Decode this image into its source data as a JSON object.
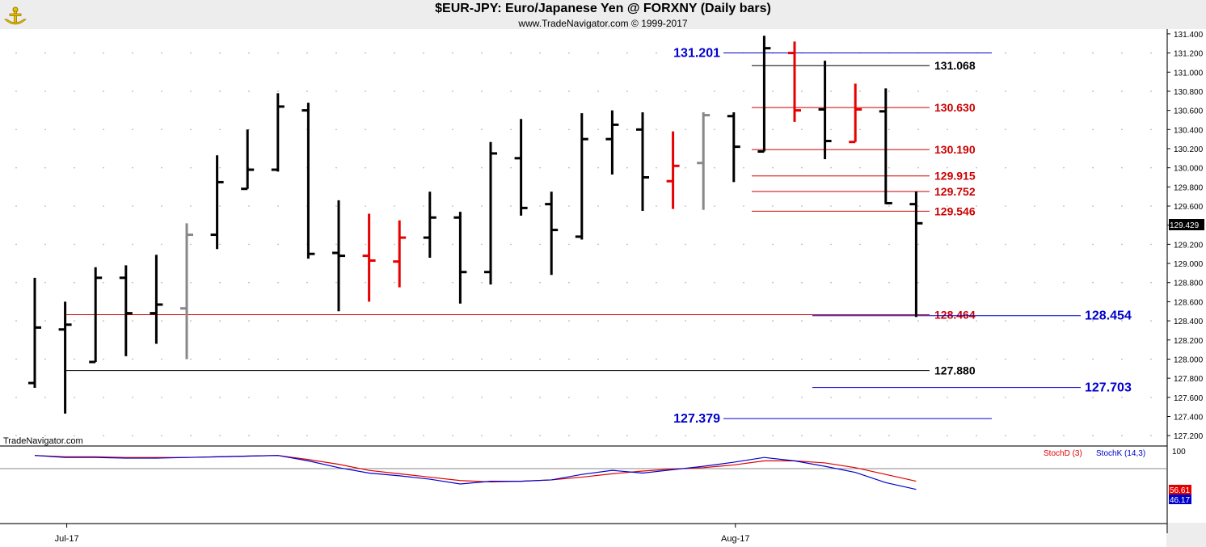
{
  "header": {
    "title": "$EUR-JPY:  Euro/Japanese Yen @ FORXNY  (Daily bars)",
    "subtitle": "www.TradeNavigator.com © 1999-2017",
    "watermark": "TradeNavigator.com"
  },
  "colors": {
    "bar_black": "#000000",
    "bar_red": "#e60000",
    "bar_gray": "#888888",
    "level_red": "#cc0000",
    "level_blue": "#0000cc",
    "level_black": "#000000",
    "stoch_d": "#e00000",
    "stoch_k": "#0000cc",
    "last_price_bg": "#000000",
    "logo": "#e8c000"
  },
  "chart_data": [
    {
      "type": "ohlc",
      "ylim": [
        127.1,
        131.45
      ],
      "y_ticks": [
        "127.200",
        "127.400",
        "127.600",
        "127.800",
        "128.000",
        "128.200",
        "128.400",
        "128.600",
        "128.800",
        "129.000",
        "129.200",
        "129.400",
        "129.600",
        "129.800",
        "130.000",
        "130.200",
        "130.400",
        "130.600",
        "130.800",
        "131.000",
        "131.200",
        "131.400"
      ],
      "x_labels": [
        {
          "label": "Jul-17",
          "index": 1
        },
        {
          "label": "Aug-17",
          "index": 23
        }
      ],
      "last_price": "129.429",
      "bars": [
        {
          "o": 127.75,
          "h": 128.85,
          "l": 127.7,
          "c": 128.33,
          "color": "black"
        },
        {
          "o": 128.31,
          "h": 128.6,
          "l": 127.43,
          "c": 128.36,
          "color": "black"
        },
        {
          "o": 127.97,
          "h": 128.96,
          "l": 127.97,
          "c": 128.85,
          "color": "black"
        },
        {
          "o": 128.85,
          "h": 128.98,
          "l": 128.03,
          "c": 128.48,
          "color": "black"
        },
        {
          "o": 128.48,
          "h": 129.09,
          "l": 128.16,
          "c": 128.57,
          "color": "black"
        },
        {
          "o": 128.53,
          "h": 129.42,
          "l": 128.0,
          "c": 129.3,
          "color": "gray"
        },
        {
          "o": 129.3,
          "h": 130.13,
          "l": 129.15,
          "c": 129.85,
          "color": "black"
        },
        {
          "o": 129.78,
          "h": 130.4,
          "l": 129.78,
          "c": 129.98,
          "color": "black"
        },
        {
          "o": 129.98,
          "h": 130.78,
          "l": 129.96,
          "c": 130.64,
          "color": "black"
        },
        {
          "o": 130.6,
          "h": 130.68,
          "l": 129.05,
          "c": 129.1,
          "color": "black"
        },
        {
          "o": 129.11,
          "h": 129.66,
          "l": 128.5,
          "c": 129.08,
          "color": "black"
        },
        {
          "o": 129.08,
          "h": 129.52,
          "l": 128.6,
          "c": 129.03,
          "color": "red"
        },
        {
          "o": 129.02,
          "h": 129.45,
          "l": 128.75,
          "c": 129.27,
          "color": "red"
        },
        {
          "o": 129.27,
          "h": 129.75,
          "l": 129.06,
          "c": 129.48,
          "color": "black"
        },
        {
          "o": 129.48,
          "h": 129.54,
          "l": 128.58,
          "c": 128.91,
          "color": "black"
        },
        {
          "o": 128.91,
          "h": 130.27,
          "l": 128.78,
          "c": 130.15,
          "color": "black"
        },
        {
          "o": 130.1,
          "h": 130.51,
          "l": 129.5,
          "c": 129.58,
          "color": "black"
        },
        {
          "o": 129.62,
          "h": 129.75,
          "l": 128.88,
          "c": 129.35,
          "color": "black"
        },
        {
          "o": 129.28,
          "h": 130.57,
          "l": 129.25,
          "c": 130.3,
          "color": "black"
        },
        {
          "o": 130.3,
          "h": 130.6,
          "l": 129.93,
          "c": 130.45,
          "color": "black"
        },
        {
          "o": 130.4,
          "h": 130.58,
          "l": 129.55,
          "c": 129.9,
          "color": "black"
        },
        {
          "o": 129.86,
          "h": 130.38,
          "l": 129.57,
          "c": 130.02,
          "color": "red"
        },
        {
          "o": 130.05,
          "h": 130.58,
          "l": 129.56,
          "c": 130.55,
          "color": "gray"
        },
        {
          "o": 130.54,
          "h": 130.58,
          "l": 129.85,
          "c": 130.22,
          "color": "black"
        },
        {
          "o": 130.17,
          "h": 131.38,
          "l": 130.17,
          "c": 131.25,
          "color": "black"
        },
        {
          "o": 131.2,
          "h": 131.32,
          "l": 130.48,
          "c": 130.6,
          "color": "red"
        },
        {
          "o": 130.61,
          "h": 131.12,
          "l": 130.09,
          "c": 130.28,
          "color": "black"
        },
        {
          "o": 130.27,
          "h": 130.88,
          "l": 130.27,
          "c": 130.61,
          "color": "red"
        },
        {
          "o": 130.59,
          "h": 130.83,
          "l": 129.62,
          "c": 129.63,
          "color": "black"
        },
        {
          "o": 129.62,
          "h": 129.75,
          "l": 128.44,
          "c": 129.42,
          "color": "black"
        }
      ],
      "levels": [
        {
          "value": "131.201",
          "color": "blue",
          "side": "left"
        },
        {
          "value": "131.068",
          "color": "black",
          "side": "mid"
        },
        {
          "value": "130.630",
          "color": "red",
          "side": "mid"
        },
        {
          "value": "130.190",
          "color": "red",
          "side": "mid"
        },
        {
          "value": "129.915",
          "color": "red",
          "side": "mid"
        },
        {
          "value": "129.752",
          "color": "red",
          "side": "mid"
        },
        {
          "value": "129.546",
          "color": "red",
          "side": "mid"
        },
        {
          "value": "128.464",
          "color": "red",
          "side": "mid"
        },
        {
          "value": "128.454",
          "color": "blue",
          "side": "right"
        },
        {
          "value": "127.880",
          "color": "black",
          "side": "mid"
        },
        {
          "value": "127.703",
          "color": "blue",
          "side": "right"
        },
        {
          "value": "127.379",
          "color": "blue",
          "side": "left"
        }
      ]
    },
    {
      "type": "line",
      "ylim": [
        0,
        100
      ],
      "y_tick": "100",
      "series": [
        {
          "name": "StochD (3)",
          "last": "56.61",
          "values": [
            98,
            96,
            96,
            95,
            95,
            95,
            96,
            97,
            98,
            92,
            85,
            76,
            71,
            66,
            61,
            59,
            60,
            62,
            66,
            71,
            75,
            78,
            80,
            84,
            90,
            90,
            87,
            80,
            70,
            60
          ]
        },
        {
          "name": "StochK (14,3)",
          "last": "46.17",
          "values": [
            98,
            95,
            95,
            94,
            94,
            95,
            96,
            97,
            98,
            90,
            80,
            72,
            68,
            63,
            56,
            60,
            60,
            62,
            70,
            76,
            72,
            77,
            82,
            88,
            95,
            90,
            82,
            73,
            58,
            48
          ]
        }
      ]
    }
  ]
}
